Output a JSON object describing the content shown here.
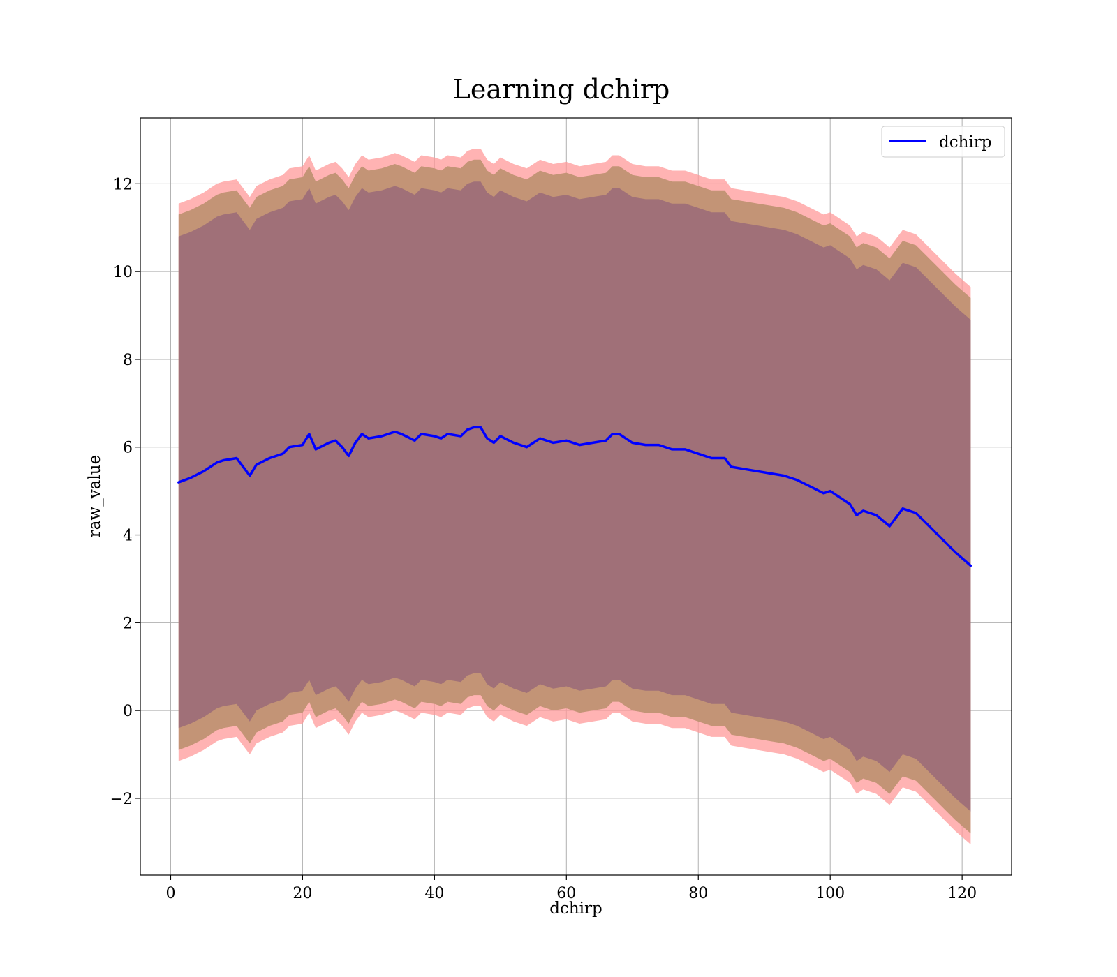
{
  "chart_data": {
    "type": "line",
    "title": "Learning dchirp",
    "xlabel": "dchirp",
    "ylabel": "raw_value",
    "xlim": [
      -4.6,
      127.5
    ],
    "ylim": [
      -3.75,
      13.5
    ],
    "grid": true,
    "legend_placement": "top-right",
    "x_ticks": [
      0,
      20,
      40,
      60,
      80,
      100,
      120
    ],
    "y_ticks": [
      -2,
      0,
      2,
      4,
      6,
      8,
      10,
      12
    ],
    "x_tick_labels": [
      "0",
      "20",
      "40",
      "60",
      "80",
      "100",
      "120"
    ],
    "y_tick_labels": [
      "−2",
      "0",
      "2",
      "4",
      "6",
      "8",
      "10",
      "12"
    ],
    "colors": {
      "line": "#0000ff",
      "band_outer": "#ff9999",
      "band_middle": "#c39476",
      "band_inner": "#a07078",
      "grid": "#b0b0b0"
    },
    "series": [
      {
        "name": "dchirp",
        "x": [
          1.2,
          3,
          5,
          7,
          8,
          10,
          12,
          13,
          15,
          17,
          18,
          20,
          21,
          22,
          24,
          25,
          26,
          27,
          28,
          29,
          30,
          32,
          34,
          35,
          37,
          38,
          40,
          41,
          42,
          44,
          45,
          46,
          47,
          48,
          49,
          50,
          52,
          54,
          55,
          56,
          58,
          60,
          62,
          64,
          66,
          67,
          68,
          70,
          72,
          74,
          76,
          78,
          80,
          82,
          84,
          85,
          87,
          89,
          91,
          93,
          95,
          97,
          99,
          100,
          101,
          103,
          104,
          105,
          107,
          109,
          111,
          113,
          115,
          117,
          119,
          121.3
        ],
        "y": [
          5.2,
          5.3,
          5.45,
          5.65,
          5.7,
          5.75,
          5.35,
          5.6,
          5.75,
          5.85,
          6.0,
          6.05,
          6.3,
          5.95,
          6.1,
          6.15,
          6.0,
          5.8,
          6.1,
          6.3,
          6.2,
          6.25,
          6.35,
          6.3,
          6.15,
          6.3,
          6.25,
          6.2,
          6.3,
          6.25,
          6.4,
          6.45,
          6.45,
          6.2,
          6.1,
          6.25,
          6.1,
          6.0,
          6.1,
          6.2,
          6.1,
          6.15,
          6.05,
          6.1,
          6.15,
          6.3,
          6.3,
          6.1,
          6.05,
          6.05,
          5.95,
          5.95,
          5.85,
          5.75,
          5.75,
          5.55,
          5.5,
          5.45,
          5.4,
          5.35,
          5.25,
          5.1,
          4.95,
          5.0,
          4.9,
          4.7,
          4.45,
          4.55,
          4.45,
          4.2,
          4.6,
          4.5,
          4.2,
          3.9,
          3.6,
          3.3
        ],
        "inner_band_halfwidth": 5.6,
        "middle_band_halfwidth": 6.1,
        "outer_band_halfwidth": 6.35
      }
    ]
  }
}
